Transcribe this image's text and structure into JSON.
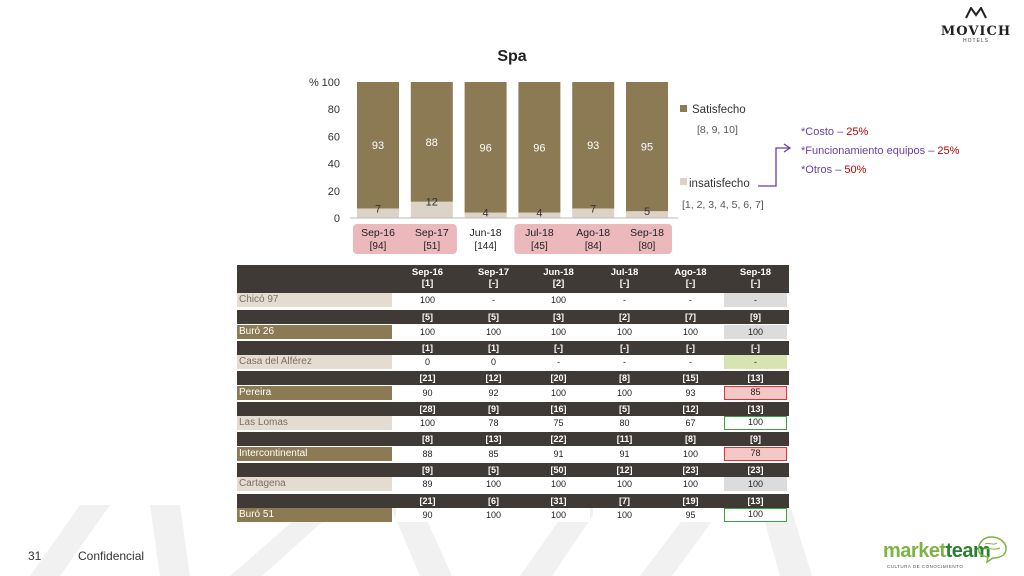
{
  "header": {
    "brand": "MOVICH",
    "brand_sub": "HOTELS"
  },
  "footer": {
    "page_number": "31",
    "confidential": "Confidencial",
    "partner": {
      "name_a": "market",
      "name_b": "team",
      "tagline": "CULTURA DE CONOCIMIENTO"
    }
  },
  "chart_data": {
    "type": "bar",
    "stacked": true,
    "title": "Spa",
    "ylabel": "%",
    "ylim": [
      0,
      100
    ],
    "yticks": [
      "0",
      "20",
      "40",
      "60",
      "80",
      "100"
    ],
    "categories": [
      "Sep-16",
      "Sep-17",
      "Jun-18",
      "Jul-18",
      "Ago-18",
      "Sep-18"
    ],
    "sample_sizes": [
      "[94]",
      "[51]",
      "[144]",
      "[45]",
      "[84]",
      "[80]"
    ],
    "highlighted_categories": [
      0,
      1,
      3,
      4,
      5
    ],
    "series": [
      {
        "name": "insatisfecho",
        "values": [
          7,
          12,
          4,
          4,
          7,
          5
        ],
        "color": "#ddd2c6"
      },
      {
        "name": "Satisfecho",
        "values": [
          93,
          88,
          96,
          96,
          93,
          95
        ],
        "color": "#8b7a54"
      }
    ],
    "legend_position": "right",
    "legend_notes": {
      "satisfecho": "[8, 9, 10]",
      "insatisfecho": "[1, 2, 3, 4, 5, 6, 7]"
    },
    "grid": false
  },
  "dissatisfaction_reasons": [
    {
      "text": "*Costo – ",
      "pct": "25%"
    },
    {
      "text": "*Funcionamiento equipos – ",
      "pct": "25%"
    },
    {
      "text": "*Otros – ",
      "pct": "50%"
    }
  ],
  "table": {
    "header_periods": [
      "Sep-16",
      "Sep-17",
      "Jun-18",
      "Jul-18",
      "Ago-18",
      "Sep-18"
    ],
    "rows": [
      {
        "name": "Chicó 97",
        "style": "light",
        "counts": [
          "[1]",
          "[-]",
          "[2]",
          "[-]",
          "[-]",
          "[-]"
        ],
        "values": [
          "100",
          "-",
          "100",
          "-",
          "-",
          "-"
        ],
        "last_highlight": "grey"
      },
      {
        "name": "Buró 26",
        "style": "dark",
        "counts": [
          "[5]",
          "[5]",
          "[3]",
          "[2]",
          "[7]",
          "[9]"
        ],
        "values": [
          "100",
          "100",
          "100",
          "100",
          "100",
          "100"
        ],
        "last_highlight": "grey"
      },
      {
        "name": "Casa del Alférez",
        "style": "light",
        "counts": [
          "[1]",
          "[1]",
          "[-]",
          "[-]",
          "[-]",
          "[-]"
        ],
        "values": [
          "0",
          "0",
          "-",
          "-",
          "-",
          "-"
        ],
        "last_highlight": "lgreen"
      },
      {
        "name": "Pereira",
        "style": "dark",
        "counts": [
          "[21]",
          "[12]",
          "[20]",
          "[8]",
          "[15]",
          "[13]"
        ],
        "values": [
          "90",
          "92",
          "100",
          "100",
          "93",
          "85"
        ],
        "last_highlight": "red"
      },
      {
        "name": "Las Lomas",
        "style": "light",
        "counts": [
          "[28]",
          "[9]",
          "[16]",
          "[5]",
          "[12]",
          "[13]"
        ],
        "values": [
          "100",
          "78",
          "75",
          "80",
          "67",
          "100"
        ],
        "last_highlight": "green"
      },
      {
        "name": "Intercontinental",
        "style": "dark",
        "counts": [
          "[8]",
          "[13]",
          "[22]",
          "[11]",
          "[8]",
          "[9]"
        ],
        "values": [
          "88",
          "85",
          "91",
          "91",
          "100",
          "78"
        ],
        "last_highlight": "red"
      },
      {
        "name": "Cartagena",
        "style": "light",
        "counts": [
          "[9]",
          "[5]",
          "[50]",
          "[12]",
          "[23]",
          "[23]"
        ],
        "values": [
          "89",
          "100",
          "100",
          "100",
          "100",
          "100"
        ],
        "last_highlight": "grey"
      },
      {
        "name": "Buró 51",
        "style": "dark",
        "counts": [
          "[21]",
          "[6]",
          "[31]",
          "[7]",
          "[19]",
          "[13]"
        ],
        "values": [
          "90",
          "100",
          "100",
          "100",
          "95",
          "100"
        ],
        "last_highlight": "green"
      }
    ]
  }
}
